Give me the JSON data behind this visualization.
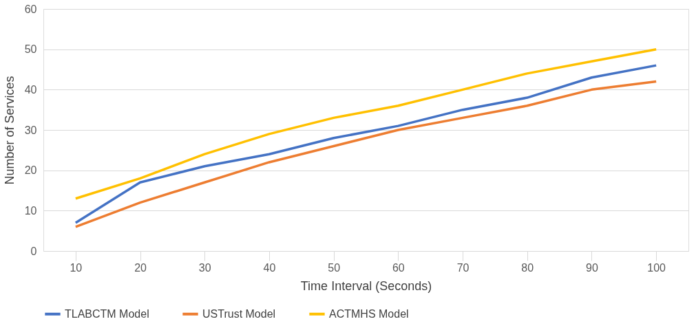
{
  "chart_data": {
    "type": "line",
    "xlabel": "Time Interval (Seconds)",
    "ylabel": "Number of Services",
    "categories": [
      "10",
      "20",
      "30",
      "40",
      "50",
      "60",
      "70",
      "80",
      "90",
      "100"
    ],
    "series": [
      {
        "name": "TLABCTM Model",
        "color": "#4472c4",
        "values": [
          7,
          17,
          21,
          24,
          28,
          31,
          35,
          38,
          43,
          46
        ]
      },
      {
        "name": "USTrust Model",
        "color": "#ed7d31",
        "values": [
          6,
          12,
          17,
          22,
          26,
          30,
          33,
          36,
          40,
          42
        ]
      },
      {
        "name": "ACTMHS Model",
        "color": "#ffc000",
        "values": [
          13,
          18,
          24,
          29,
          33,
          36,
          40,
          44,
          47,
          50
        ]
      }
    ],
    "ylim": [
      0,
      60
    ],
    "yticks": [
      0,
      10,
      20,
      30,
      40,
      50,
      60
    ],
    "grid": "y",
    "legend": "bottom",
    "marker": "none",
    "line_style": "solid"
  }
}
